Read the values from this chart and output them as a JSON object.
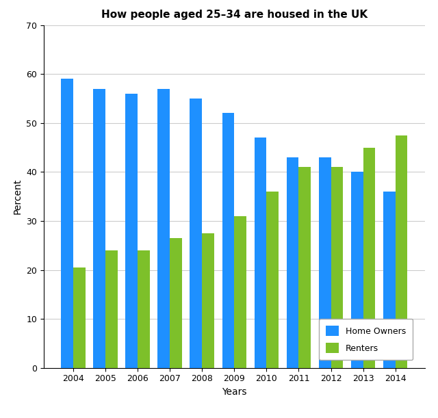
{
  "title": "How people aged 25–34 are housed in the UK",
  "xlabel": "Years",
  "ylabel": "Percent",
  "years": [
    2004,
    2005,
    2006,
    2007,
    2008,
    2009,
    2010,
    2011,
    2012,
    2013,
    2014
  ],
  "home_owners": [
    59,
    57,
    56,
    57,
    55,
    52,
    47,
    43,
    43,
    40,
    36
  ],
  "renters": [
    20.5,
    24,
    24,
    26.5,
    27.5,
    31,
    36,
    41,
    41,
    45,
    47.5
  ],
  "home_owners_color": "#1E90FF",
  "renters_color": "#7DC02A",
  "ylim": [
    0,
    70
  ],
  "yticks": [
    0,
    10,
    20,
    30,
    40,
    50,
    60,
    70
  ],
  "legend_labels": [
    "Home Owners",
    "Renters"
  ],
  "bar_width": 0.38,
  "background_color": "#FFFFFF",
  "grid_color": "#CCCCCC",
  "title_fontsize": 11,
  "axis_label_fontsize": 10,
  "tick_fontsize": 9,
  "legend_fontsize": 9
}
